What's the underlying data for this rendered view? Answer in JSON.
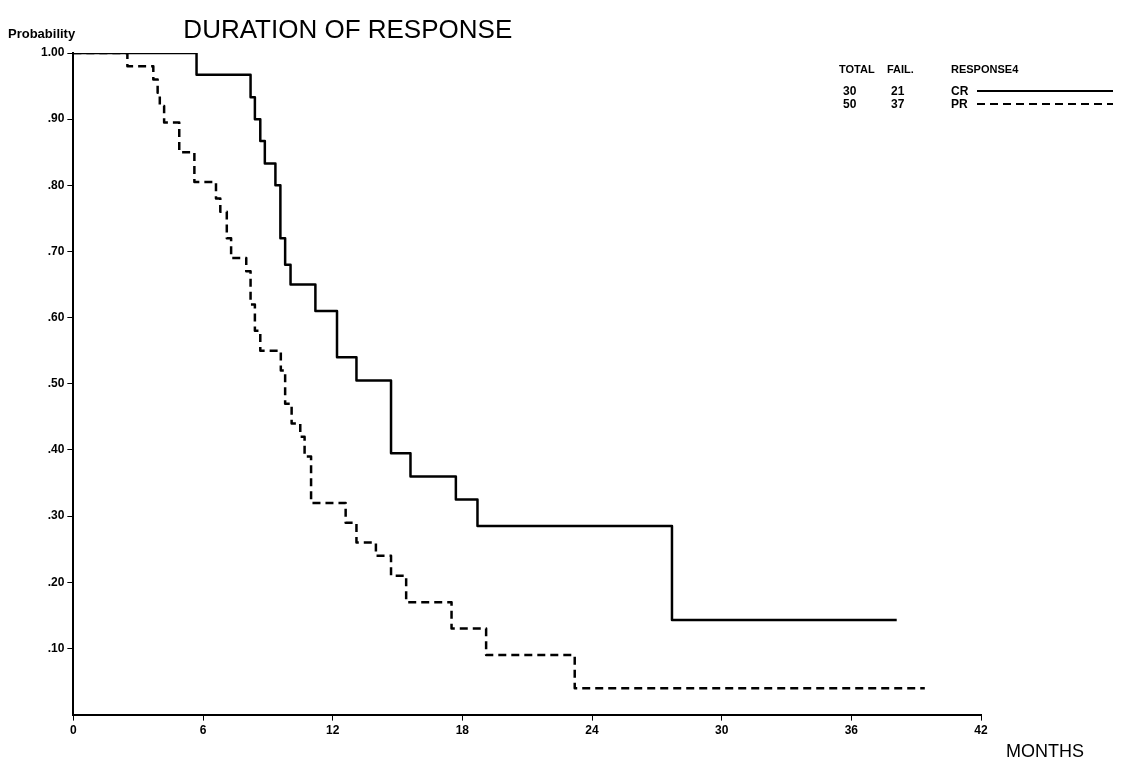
{
  "chart_data": {
    "type": "step",
    "title": "DURATION OF RESPONSE",
    "xlabel": "MONTHS",
    "ylabel": "Probability",
    "legend_title": "RESPONSE4",
    "legend": "top right",
    "grid": false,
    "marker": "none",
    "annotations": [
      "TOTAL",
      "FAIL.",
      "30",
      "21",
      "50",
      "37"
    ],
    "xlim": [
      0,
      42
    ],
    "xticks": [
      0,
      6,
      12,
      18,
      24,
      30,
      36,
      42
    ],
    "ylim": [
      0,
      1.0
    ],
    "yticks": [
      {
        "value": 0.1,
        "label": ".10"
      },
      {
        "value": 0.2,
        "label": ".20"
      },
      {
        "value": 0.3,
        "label": ".30"
      },
      {
        "value": 0.4,
        "label": ".40"
      },
      {
        "value": 0.5,
        "label": ".50"
      },
      {
        "value": 0.6,
        "label": ".60"
      },
      {
        "value": 0.7,
        "label": ".70"
      },
      {
        "value": 0.8,
        "label": ".80"
      },
      {
        "value": 0.9,
        "label": ".90"
      },
      {
        "value": 1.0,
        "label": "1.00"
      }
    ],
    "series": [
      {
        "name": "CR",
        "color": "#000000",
        "line_style": "solid",
        "x": [
          0,
          5.7,
          8.2,
          8.4,
          8.65,
          8.86,
          9.35,
          9.58,
          9.8,
          10.05,
          11.2,
          12.2,
          13.1,
          14.7,
          15.6,
          17.7,
          18.7,
          27.7,
          38.1
        ],
        "values": [
          1.0,
          0.967,
          0.933,
          0.9,
          0.867,
          0.833,
          0.8,
          0.72,
          0.68,
          0.65,
          0.61,
          0.54,
          0.505,
          0.395,
          0.36,
          0.325,
          0.285,
          0.143,
          0.143
        ]
      },
      {
        "name": "PR",
        "color": "#000000",
        "line_style": "dashed",
        "x": [
          0,
          2.5,
          3.7,
          3.9,
          4.0,
          4.2,
          4.9,
          5.6,
          6.6,
          6.8,
          7.1,
          7.3,
          8.0,
          8.2,
          8.4,
          8.65,
          9.6,
          9.8,
          10.1,
          10.5,
          10.7,
          11.0,
          12.6,
          13.1,
          14.0,
          14.7,
          15.4,
          17.5,
          19.1,
          23.2,
          39.4
        ],
        "values": [
          1.0,
          0.98,
          0.96,
          0.94,
          0.92,
          0.895,
          0.85,
          0.805,
          0.78,
          0.76,
          0.72,
          0.69,
          0.67,
          0.62,
          0.58,
          0.55,
          0.52,
          0.47,
          0.44,
          0.42,
          0.39,
          0.32,
          0.29,
          0.26,
          0.24,
          0.21,
          0.17,
          0.13,
          0.09,
          0.04,
          0.04
        ]
      }
    ]
  }
}
